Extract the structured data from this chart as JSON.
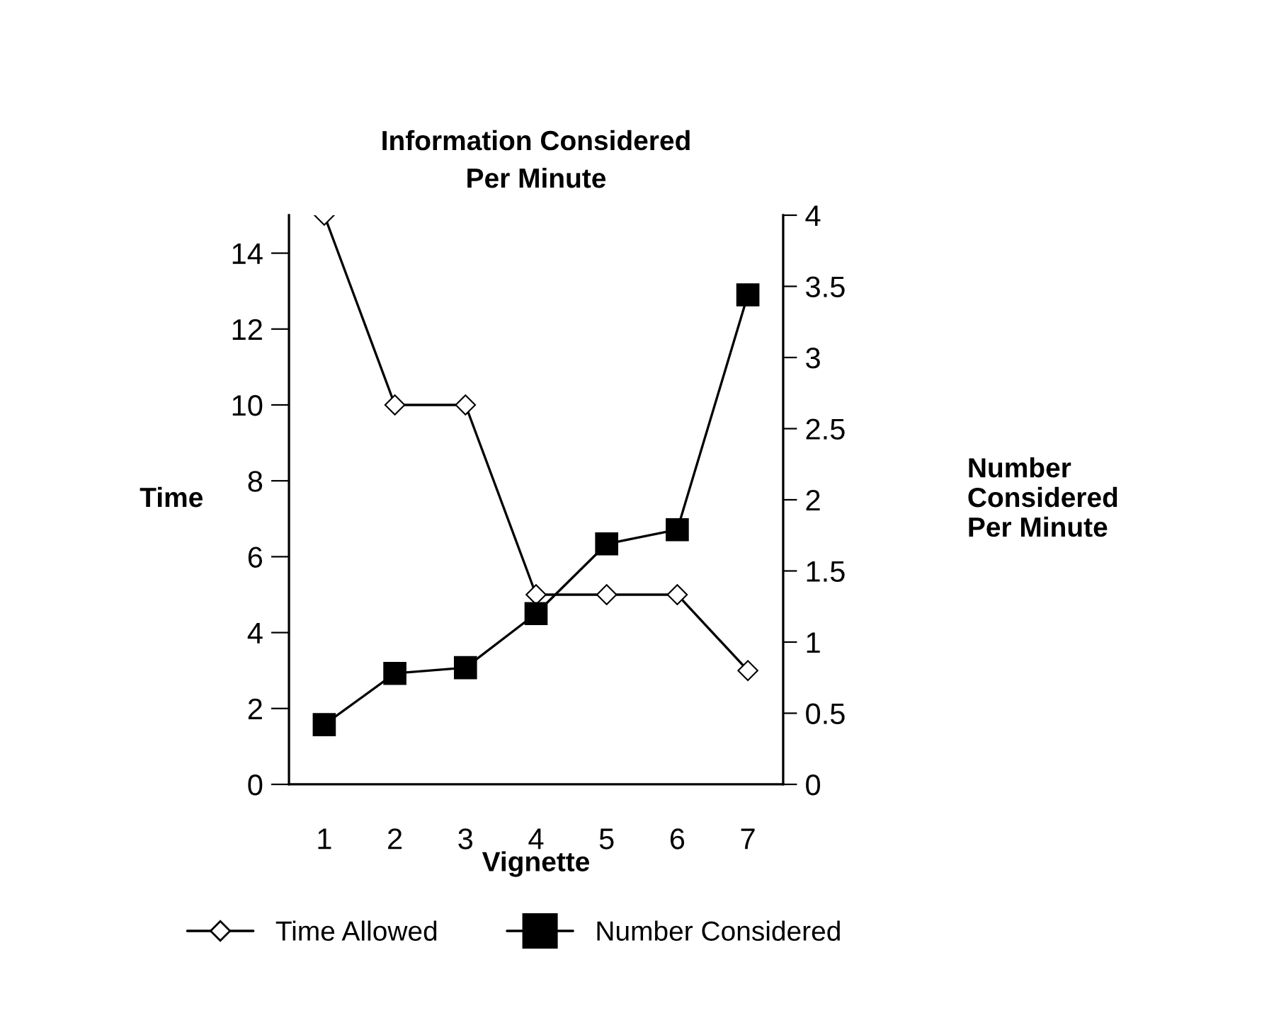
{
  "chart_data": {
    "type": "line",
    "title": "Information Considered\nPer Minute",
    "xlabel": "Vignette",
    "ylabel": "Time",
    "y2label": "Number\nConsidered\nPer Minute",
    "categories": [
      "1",
      "2",
      "3",
      "4",
      "5",
      "6",
      "7"
    ],
    "series": [
      {
        "name": "Time Allowed",
        "color": "#000000",
        "marker": "diamond",
        "values": [
          15,
          10,
          10,
          5,
          5,
          5,
          3
        ]
      },
      {
        "name": "Number Considered",
        "color": "#000000",
        "marker": "square",
        "axis": "y2",
        "values": [
          0.42,
          0.78,
          0.82,
          1.2,
          1.69,
          1.79,
          3.44
        ]
      }
    ],
    "ylim": [
      0,
      15
    ],
    "yticks": [
      0,
      2,
      4,
      6,
      8,
      10,
      12,
      14
    ],
    "y2lim": [
      0,
      4
    ],
    "y2ticks": [
      0,
      0.5,
      1,
      1.5,
      2,
      2.5,
      3,
      3.5,
      4
    ],
    "grid": false,
    "legend": "bottom",
    "line_style": "solid"
  }
}
